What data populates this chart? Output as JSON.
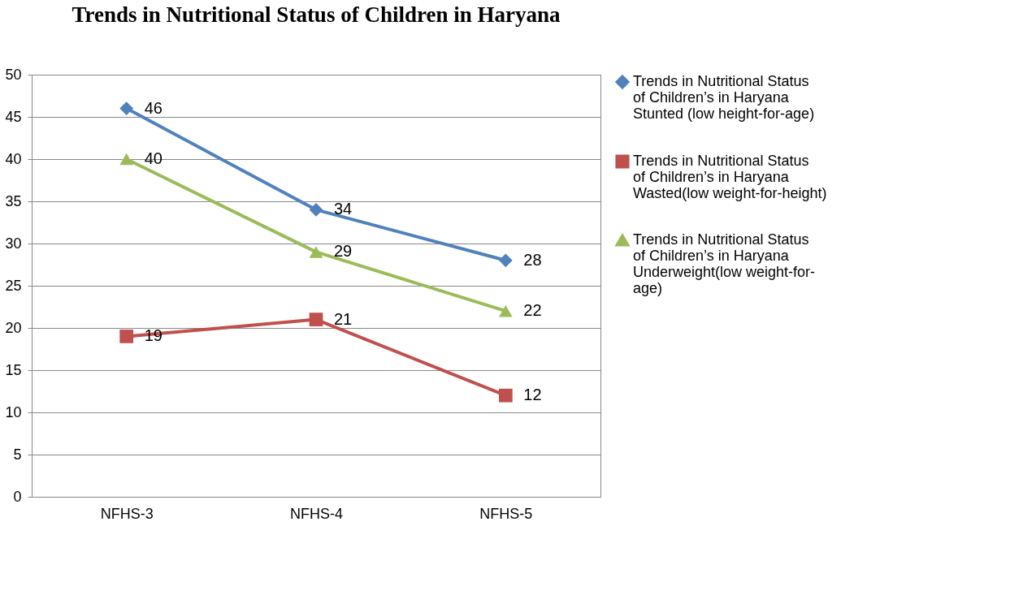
{
  "chart_data": {
    "type": "line",
    "title": "Trends in Nutritional Status of Children in Haryana",
    "categories": [
      "NFHS-3",
      "NFHS-4",
      "NFHS-5"
    ],
    "series": [
      {
        "name": "Trends in Nutritional Status of Children’s in Haryana  Stunted (low height-for-age)",
        "color": "#4f81bd",
        "marker": "diamond",
        "values": [
          46,
          34,
          28
        ]
      },
      {
        "name": "Trends in Nutritional Status of Children’s in Haryana Wasted(low weight-for-height)",
        "color": "#c0504d",
        "marker": "square",
        "values": [
          19,
          21,
          12
        ]
      },
      {
        "name": "Trends in Nutritional Status of Children’s in Haryana Underweight(low weight-for-age)",
        "color": "#9bbb59",
        "marker": "triangle",
        "values": [
          40,
          29,
          22
        ]
      }
    ],
    "ylim": [
      0,
      50
    ],
    "yticks": [
      0,
      5,
      10,
      15,
      20,
      25,
      30,
      35,
      40,
      45,
      50
    ],
    "grid": "y",
    "legend": "right",
    "data_labels": true,
    "line_style": "solid"
  }
}
